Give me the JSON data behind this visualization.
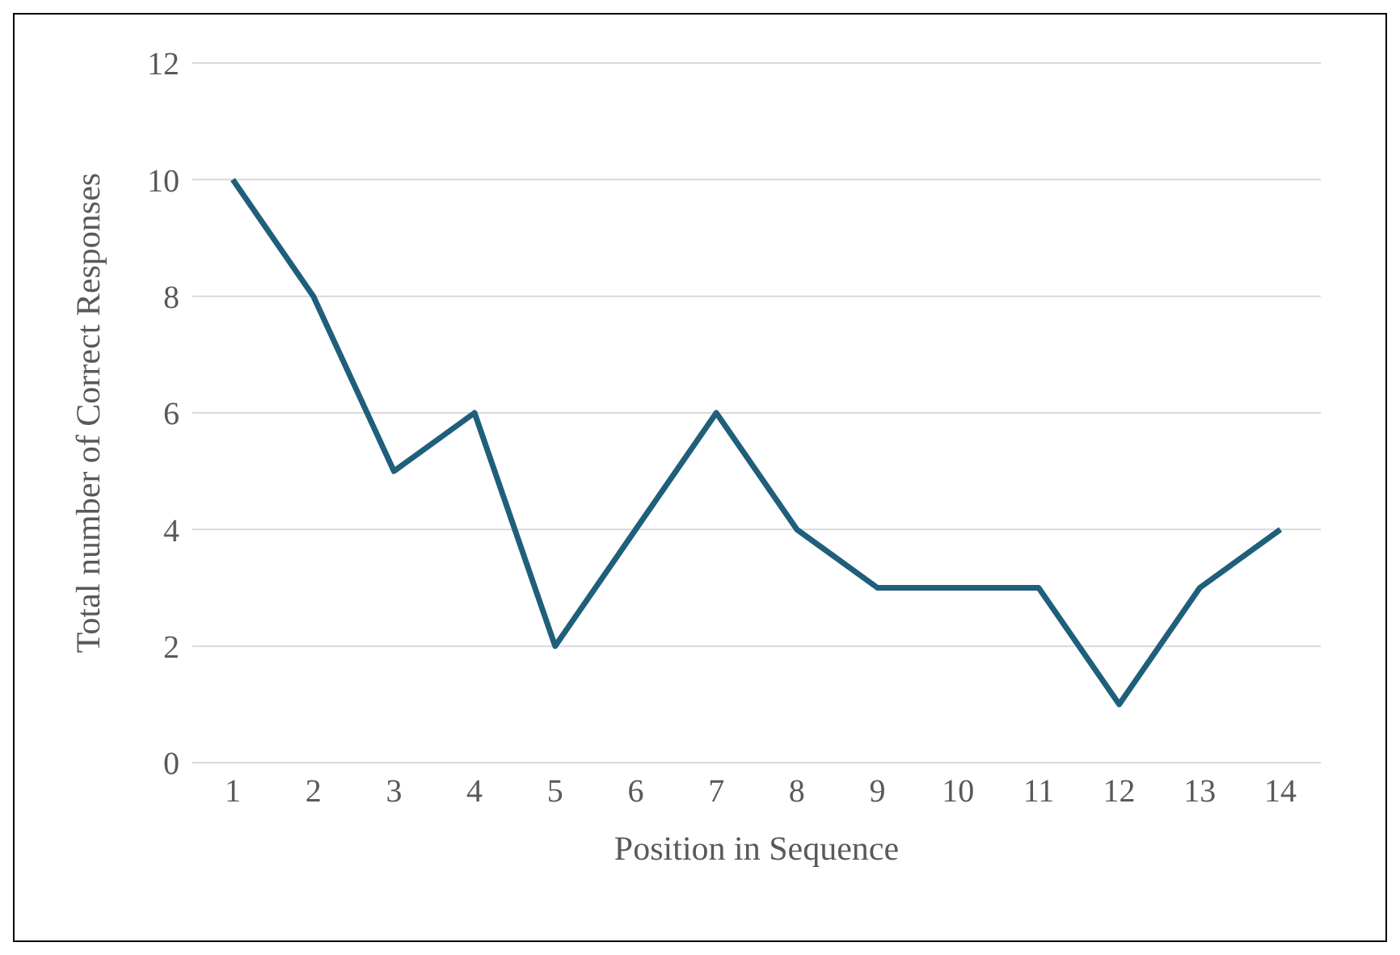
{
  "chart_data": {
    "type": "line",
    "xlabel": "Position in Sequence",
    "ylabel": "Total number of Correct Responses",
    "categories": [
      "1",
      "2",
      "3",
      "4",
      "5",
      "6",
      "7",
      "8",
      "9",
      "10",
      "11",
      "12",
      "13",
      "14"
    ],
    "series": [
      {
        "color": "#1f5f7b",
        "values": [
          10,
          8,
          5,
          6,
          2,
          4,
          6,
          4,
          3,
          3,
          3,
          1,
          3,
          4
        ]
      }
    ],
    "ylim": [
      0,
      12
    ],
    "yticks": [
      0,
      2,
      4,
      6,
      8,
      10,
      12
    ],
    "grid": "y",
    "legend": false,
    "marker": "none",
    "line_style": "solid"
  }
}
